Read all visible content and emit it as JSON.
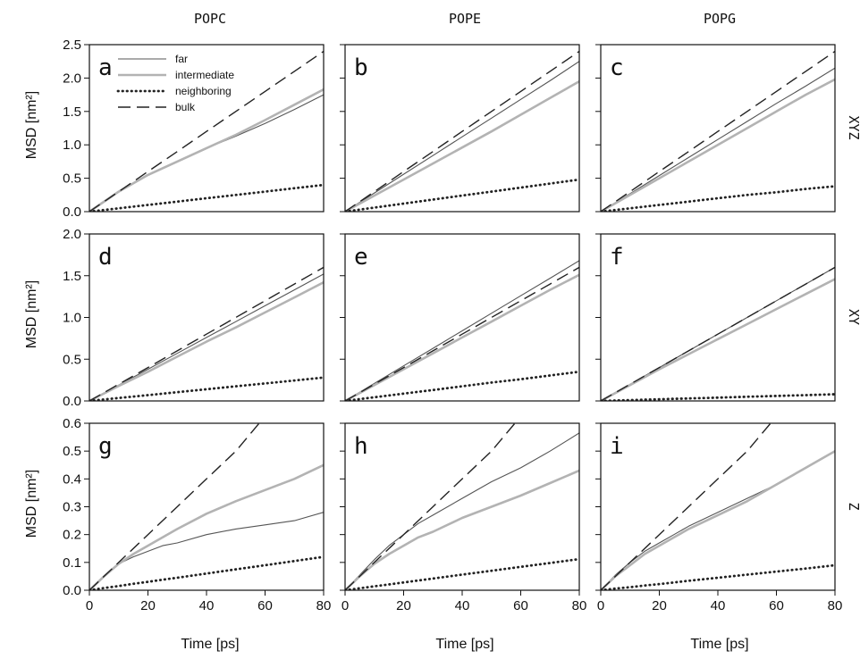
{
  "figure": {
    "columns": [
      "POPC",
      "POPE",
      "POPG"
    ],
    "rows": [
      "XYZ",
      "XY",
      "Z"
    ],
    "xlabel": "Time [ps]",
    "ylabel": "MSD [nm²]"
  },
  "legend": [
    {
      "label": "far",
      "color": "#555555",
      "style": "solid-thin"
    },
    {
      "label": "intermediate",
      "color": "#b3b3b3",
      "style": "solid-thick"
    },
    {
      "label": "neighboring",
      "color": "#222222",
      "style": "dotted"
    },
    {
      "label": "bulk",
      "color": "#222222",
      "style": "dashed"
    }
  ],
  "chart_data": [
    {
      "type": "line",
      "panel": "a",
      "column": "POPC",
      "row": "XYZ",
      "xlim": [
        0,
        80
      ],
      "ylim": [
        0,
        2.5
      ],
      "xticks": [
        0,
        20,
        40,
        60,
        80
      ],
      "yticks": [
        0.0,
        0.5,
        1.0,
        1.5,
        2.0,
        2.5
      ],
      "x": [
        0,
        10,
        20,
        30,
        40,
        50,
        60,
        70,
        80
      ],
      "series": [
        {
          "name": "far",
          "values": [
            0,
            0.3,
            0.55,
            0.75,
            0.95,
            1.13,
            1.32,
            1.53,
            1.75
          ]
        },
        {
          "name": "intermediate",
          "values": [
            0,
            0.3,
            0.55,
            0.75,
            0.95,
            1.15,
            1.37,
            1.6,
            1.83
          ]
        },
        {
          "name": "neighboring",
          "values": [
            0,
            0.05,
            0.1,
            0.15,
            0.2,
            0.25,
            0.3,
            0.35,
            0.4
          ]
        },
        {
          "name": "bulk",
          "values": [
            0,
            0.3,
            0.6,
            0.9,
            1.2,
            1.5,
            1.8,
            2.1,
            2.4
          ]
        }
      ]
    },
    {
      "type": "line",
      "panel": "b",
      "column": "POPE",
      "row": "XYZ",
      "xlim": [
        0,
        80
      ],
      "ylim": [
        0,
        2.5
      ],
      "xticks": [
        0,
        20,
        40,
        60,
        80
      ],
      "yticks": [
        0.0,
        0.5,
        1.0,
        1.5,
        2.0,
        2.5
      ],
      "x": [
        0,
        10,
        20,
        30,
        40,
        50,
        60,
        70,
        80
      ],
      "series": [
        {
          "name": "far",
          "values": [
            0,
            0.28,
            0.56,
            0.84,
            1.12,
            1.4,
            1.68,
            1.96,
            2.25
          ]
        },
        {
          "name": "intermediate",
          "values": [
            0,
            0.24,
            0.48,
            0.72,
            0.96,
            1.2,
            1.45,
            1.7,
            1.95
          ]
        },
        {
          "name": "neighboring",
          "values": [
            0,
            0.06,
            0.12,
            0.18,
            0.24,
            0.3,
            0.36,
            0.42,
            0.48
          ]
        },
        {
          "name": "bulk",
          "values": [
            0,
            0.3,
            0.6,
            0.9,
            1.2,
            1.5,
            1.8,
            2.1,
            2.4
          ]
        }
      ]
    },
    {
      "type": "line",
      "panel": "c",
      "column": "POPG",
      "row": "XYZ",
      "xlim": [
        0,
        80
      ],
      "ylim": [
        0,
        2.5
      ],
      "xticks": [
        0,
        20,
        40,
        60,
        80
      ],
      "yticks": [
        0.0,
        0.5,
        1.0,
        1.5,
        2.0,
        2.5
      ],
      "x": [
        0,
        10,
        20,
        30,
        40,
        50,
        60,
        70,
        80
      ],
      "series": [
        {
          "name": "far",
          "values": [
            0,
            0.27,
            0.54,
            0.81,
            1.08,
            1.35,
            1.62,
            1.88,
            2.15
          ]
        },
        {
          "name": "intermediate",
          "values": [
            0,
            0.25,
            0.5,
            0.75,
            1.0,
            1.25,
            1.5,
            1.75,
            1.98
          ]
        },
        {
          "name": "neighboring",
          "values": [
            0,
            0.05,
            0.1,
            0.15,
            0.2,
            0.25,
            0.29,
            0.34,
            0.38
          ]
        },
        {
          "name": "bulk",
          "values": [
            0,
            0.3,
            0.6,
            0.9,
            1.2,
            1.5,
            1.8,
            2.1,
            2.4
          ]
        }
      ]
    },
    {
      "type": "line",
      "panel": "d",
      "column": "POPC",
      "row": "XY",
      "xlim": [
        0,
        80
      ],
      "ylim": [
        0,
        2.0
      ],
      "xticks": [
        0,
        20,
        40,
        60,
        80
      ],
      "yticks": [
        0.0,
        0.5,
        1.0,
        1.5,
        2.0
      ],
      "x": [
        0,
        10,
        20,
        30,
        40,
        50,
        60,
        70,
        80
      ],
      "series": [
        {
          "name": "far",
          "values": [
            0,
            0.19,
            0.38,
            0.57,
            0.76,
            0.95,
            1.14,
            1.33,
            1.52
          ]
        },
        {
          "name": "intermediate",
          "values": [
            0,
            0.18,
            0.35,
            0.53,
            0.71,
            0.88,
            1.06,
            1.24,
            1.42
          ]
        },
        {
          "name": "neighboring",
          "values": [
            0,
            0.035,
            0.07,
            0.105,
            0.14,
            0.175,
            0.21,
            0.245,
            0.28
          ]
        },
        {
          "name": "bulk",
          "values": [
            0,
            0.2,
            0.4,
            0.6,
            0.8,
            1.0,
            1.2,
            1.4,
            1.6
          ]
        }
      ]
    },
    {
      "type": "line",
      "panel": "e",
      "column": "POPE",
      "row": "XY",
      "xlim": [
        0,
        80
      ],
      "ylim": [
        0,
        2.0
      ],
      "xticks": [
        0,
        20,
        40,
        60,
        80
      ],
      "yticks": [
        0.0,
        0.5,
        1.0,
        1.5,
        2.0
      ],
      "x": [
        0,
        10,
        20,
        30,
        40,
        50,
        60,
        70,
        80
      ],
      "series": [
        {
          "name": "far",
          "values": [
            0,
            0.21,
            0.42,
            0.63,
            0.84,
            1.05,
            1.26,
            1.47,
            1.68
          ]
        },
        {
          "name": "intermediate",
          "values": [
            0,
            0.19,
            0.38,
            0.57,
            0.76,
            0.95,
            1.14,
            1.33,
            1.51
          ]
        },
        {
          "name": "neighboring",
          "values": [
            0,
            0.044,
            0.088,
            0.13,
            0.175,
            0.22,
            0.26,
            0.305,
            0.35
          ]
        },
        {
          "name": "bulk",
          "values": [
            0,
            0.2,
            0.4,
            0.6,
            0.8,
            1.0,
            1.2,
            1.4,
            1.6
          ]
        }
      ]
    },
    {
      "type": "line",
      "panel": "f",
      "column": "POPG",
      "row": "XY",
      "xlim": [
        0,
        80
      ],
      "ylim": [
        0,
        2.0
      ],
      "xticks": [
        0,
        20,
        40,
        60,
        80
      ],
      "yticks": [
        0.0,
        0.5,
        1.0,
        1.5,
        2.0
      ],
      "x": [
        0,
        10,
        20,
        30,
        40,
        50,
        60,
        70,
        80
      ],
      "series": [
        {
          "name": "far",
          "values": [
            0,
            0.2,
            0.4,
            0.6,
            0.8,
            1.0,
            1.2,
            1.4,
            1.6
          ]
        },
        {
          "name": "intermediate",
          "values": [
            0,
            0.19,
            0.38,
            0.56,
            0.74,
            0.92,
            1.1,
            1.28,
            1.46
          ]
        },
        {
          "name": "neighboring",
          "values": [
            0,
            0.01,
            0.02,
            0.03,
            0.04,
            0.05,
            0.06,
            0.07,
            0.08
          ]
        },
        {
          "name": "bulk",
          "values": [
            0,
            0.2,
            0.4,
            0.6,
            0.8,
            1.0,
            1.2,
            1.4,
            1.6
          ]
        }
      ]
    },
    {
      "type": "line",
      "panel": "g",
      "column": "POPC",
      "row": "Z",
      "xlim": [
        0,
        80
      ],
      "ylim": [
        0,
        0.6
      ],
      "xticks": [
        0,
        20,
        40,
        60,
        80
      ],
      "yticks": [
        0.0,
        0.1,
        0.2,
        0.3,
        0.4,
        0.5,
        0.6
      ],
      "x": [
        0,
        5,
        10,
        15,
        20,
        25,
        30,
        40,
        50,
        60,
        70,
        80
      ],
      "series": [
        {
          "name": "far",
          "values": [
            0,
            0.05,
            0.095,
            0.12,
            0.14,
            0.16,
            0.17,
            0.2,
            0.22,
            0.235,
            0.25,
            0.28
          ]
        },
        {
          "name": "intermediate",
          "values": [
            0,
            0.05,
            0.095,
            0.13,
            0.16,
            0.19,
            0.22,
            0.275,
            0.32,
            0.36,
            0.4,
            0.45
          ]
        },
        {
          "name": "neighboring",
          "values": [
            0,
            0.008,
            0.015,
            0.023,
            0.03,
            0.038,
            0.045,
            0.06,
            0.075,
            0.09,
            0.105,
            0.12
          ]
        },
        {
          "name": "bulk",
          "x": [
            0,
            10,
            20,
            30,
            40,
            50,
            58
          ],
          "values": [
            0,
            0.1,
            0.2,
            0.3,
            0.4,
            0.5,
            0.6
          ]
        }
      ]
    },
    {
      "type": "line",
      "panel": "h",
      "column": "POPE",
      "row": "Z",
      "xlim": [
        0,
        80
      ],
      "ylim": [
        0,
        0.6
      ],
      "xticks": [
        0,
        20,
        40,
        60,
        80
      ],
      "yticks": [
        0.0,
        0.1,
        0.2,
        0.3,
        0.4,
        0.5,
        0.6
      ],
      "x": [
        0,
        5,
        10,
        15,
        20,
        25,
        30,
        40,
        50,
        60,
        70,
        80
      ],
      "series": [
        {
          "name": "far",
          "values": [
            0,
            0.055,
            0.11,
            0.16,
            0.2,
            0.24,
            0.27,
            0.33,
            0.39,
            0.44,
            0.5,
            0.565
          ]
        },
        {
          "name": "intermediate",
          "values": [
            0,
            0.05,
            0.095,
            0.13,
            0.16,
            0.19,
            0.21,
            0.26,
            0.3,
            0.34,
            0.385,
            0.43
          ]
        },
        {
          "name": "neighboring",
          "values": [
            0,
            0.007,
            0.014,
            0.021,
            0.028,
            0.035,
            0.042,
            0.056,
            0.07,
            0.084,
            0.098,
            0.112
          ]
        },
        {
          "name": "bulk",
          "x": [
            0,
            10,
            20,
            30,
            40,
            50,
            58
          ],
          "values": [
            0,
            0.1,
            0.2,
            0.3,
            0.4,
            0.5,
            0.6
          ]
        }
      ]
    },
    {
      "type": "line",
      "panel": "i",
      "column": "POPG",
      "row": "Z",
      "xlim": [
        0,
        80
      ],
      "ylim": [
        0,
        0.6
      ],
      "xticks": [
        0,
        20,
        40,
        60,
        80
      ],
      "yticks": [
        0.0,
        0.1,
        0.2,
        0.3,
        0.4,
        0.5,
        0.6
      ],
      "x": [
        0,
        5,
        10,
        15,
        20,
        25,
        30,
        40,
        50,
        60,
        70,
        80
      ],
      "series": [
        {
          "name": "far",
          "values": [
            0,
            0.055,
            0.1,
            0.14,
            0.17,
            0.2,
            0.23,
            0.28,
            0.33,
            0.38,
            0.44,
            0.5
          ]
        },
        {
          "name": "intermediate",
          "values": [
            0,
            0.05,
            0.09,
            0.13,
            0.16,
            0.19,
            0.22,
            0.27,
            0.32,
            0.38,
            0.44,
            0.5
          ]
        },
        {
          "name": "neighboring",
          "values": [
            0,
            0.006,
            0.011,
            0.017,
            0.022,
            0.028,
            0.034,
            0.045,
            0.056,
            0.067,
            0.078,
            0.09
          ]
        },
        {
          "name": "bulk",
          "x": [
            0,
            10,
            20,
            30,
            40,
            50,
            58
          ],
          "values": [
            0,
            0.1,
            0.2,
            0.3,
            0.4,
            0.5,
            0.6
          ]
        }
      ]
    }
  ]
}
